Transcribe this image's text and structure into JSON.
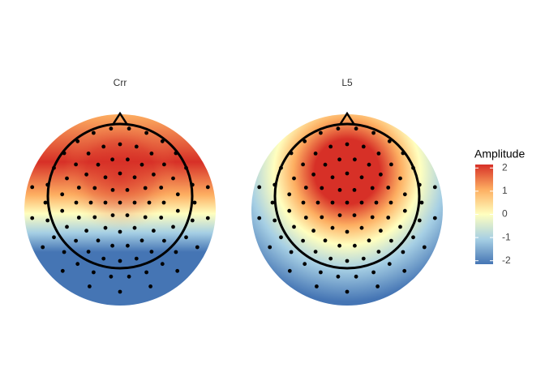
{
  "chart_data": {
    "type": "topoplot",
    "panels": [
      {
        "title": "Crr"
      },
      {
        "title": "L5"
      }
    ],
    "legend_title": "Amplitude",
    "clim": [
      -2.15,
      2.15
    ],
    "cticks": [
      -2,
      -1,
      0,
      1,
      2
    ],
    "colors": [
      "#4575b4",
      "#a6cfe4",
      "#ffffbf",
      "#fdae61",
      "#d73027"
    ]
  }
}
